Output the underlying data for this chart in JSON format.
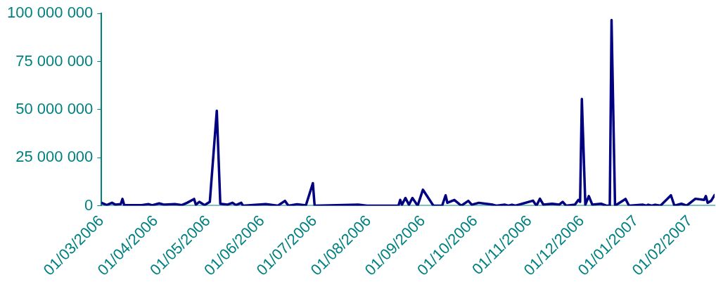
{
  "chart_data": {
    "type": "line",
    "x": [
      "2006-03-01",
      "2006-03-04",
      "2006-03-07",
      "2006-03-09",
      "2006-03-12",
      "2006-03-13",
      "2006-03-14",
      "2006-03-24",
      "2006-03-28",
      "2006-03-30",
      "2006-04-03",
      "2006-04-06",
      "2006-04-12",
      "2006-04-16",
      "2006-04-19",
      "2006-04-23",
      "2006-04-24",
      "2006-04-26",
      "2006-04-29",
      "2006-05-02",
      "2006-05-06",
      "2006-05-08",
      "2006-05-12",
      "2006-05-15",
      "2006-05-17",
      "2006-05-20",
      "2006-05-21",
      "2006-06-03",
      "2006-06-10",
      "2006-06-14",
      "2006-06-16",
      "2006-06-21",
      "2006-06-26",
      "2006-06-30",
      "2006-07-01",
      "2006-07-26",
      "2006-07-31",
      "2006-08-18",
      "2006-08-19",
      "2006-08-20",
      "2006-08-22",
      "2006-08-24",
      "2006-08-26",
      "2006-08-29",
      "2006-09-01",
      "2006-09-07",
      "2006-09-12",
      "2006-09-14",
      "2006-09-15",
      "2006-09-19",
      "2006-09-23",
      "2006-09-27",
      "2006-09-29",
      "2006-10-03",
      "2006-10-11",
      "2006-10-13",
      "2006-10-18",
      "2006-10-20",
      "2006-10-22",
      "2006-10-24",
      "2006-11-03",
      "2006-11-05",
      "2006-11-07",
      "2006-11-09",
      "2006-11-14",
      "2006-11-18",
      "2006-11-20",
      "2006-11-22",
      "2006-11-27",
      "2006-11-29",
      "2006-11-30",
      "2006-12-01",
      "2006-12-03",
      "2006-12-05",
      "2006-12-07",
      "2006-12-12",
      "2006-12-15",
      "2006-12-17",
      "2006-12-18",
      "2006-12-20",
      "2006-12-26",
      "2006-12-28",
      "2007-01-05",
      "2007-01-07",
      "2007-01-08",
      "2007-01-10",
      "2007-01-12",
      "2007-01-15",
      "2007-01-21",
      "2007-01-23",
      "2007-01-27",
      "2007-01-30",
      "2007-02-04",
      "2007-02-09",
      "2007-02-10",
      "2007-02-11",
      "2007-02-13",
      "2007-02-15"
    ],
    "series": [
      {
        "color": "#000080",
        "values": [
          1500000,
          300000,
          1500000,
          500000,
          800000,
          3500000,
          300000,
          300000,
          800000,
          200000,
          1200000,
          500000,
          800000,
          300000,
          1500000,
          3500000,
          500000,
          2000000,
          300000,
          2000000,
          49400000,
          1000000,
          500000,
          1500000,
          300000,
          1500000,
          0,
          800000,
          0,
          2500000,
          0,
          700000,
          200000,
          11700000,
          0,
          500000,
          0,
          0,
          3000000,
          500000,
          4000000,
          500000,
          4000000,
          0,
          8300000,
          0,
          0,
          5400000,
          1500000,
          3000000,
          0,
          2500000,
          500000,
          1500000,
          500000,
          0,
          500000,
          0,
          500000,
          0,
          2600000,
          0,
          3600000,
          500000,
          1000000,
          500000,
          2000000,
          0,
          500000,
          3000000,
          2000000,
          55500000,
          500000,
          5000000,
          500000,
          1000000,
          0,
          0,
          96600000,
          0,
          3500000,
          0,
          500000,
          0,
          500000,
          0,
          500000,
          0,
          5400000,
          0,
          1000000,
          0,
          3600000,
          3000000,
          5000000,
          1500000,
          2500000,
          5500000
        ]
      }
    ],
    "xlim": [
      "2006-03-01",
      "2007-02-15"
    ],
    "xticks": [
      {
        "value": "2006-03-01",
        "label": "01/03/2006"
      },
      {
        "value": "2006-04-01",
        "label": "01/04/2006"
      },
      {
        "value": "2006-05-01",
        "label": "01/05/2006"
      },
      {
        "value": "2006-06-01",
        "label": "01/06/2006"
      },
      {
        "value": "2006-07-01",
        "label": "01/07/2006"
      },
      {
        "value": "2006-08-01",
        "label": "01/08/2006"
      },
      {
        "value": "2006-09-01",
        "label": "01/09/2006"
      },
      {
        "value": "2006-10-01",
        "label": "01/10/2006"
      },
      {
        "value": "2006-11-01",
        "label": "01/11/2006"
      },
      {
        "value": "2006-12-01",
        "label": "01/12/2006"
      },
      {
        "value": "2007-01-01",
        "label": "01/01/2007"
      },
      {
        "value": "2007-02-01",
        "label": "01/02/2007"
      }
    ],
    "ylim": [
      0,
      100000000
    ],
    "yticks": [
      {
        "value": 0,
        "label": "0"
      },
      {
        "value": 25000000,
        "label": "25 000 000"
      },
      {
        "value": 50000000,
        "label": "50 000 000"
      },
      {
        "value": 75000000,
        "label": "75 000 000"
      },
      {
        "value": 100000000,
        "label": "100 000 000"
      }
    ],
    "grid": false,
    "legend": false,
    "marker": "none",
    "line_style": "solid"
  }
}
